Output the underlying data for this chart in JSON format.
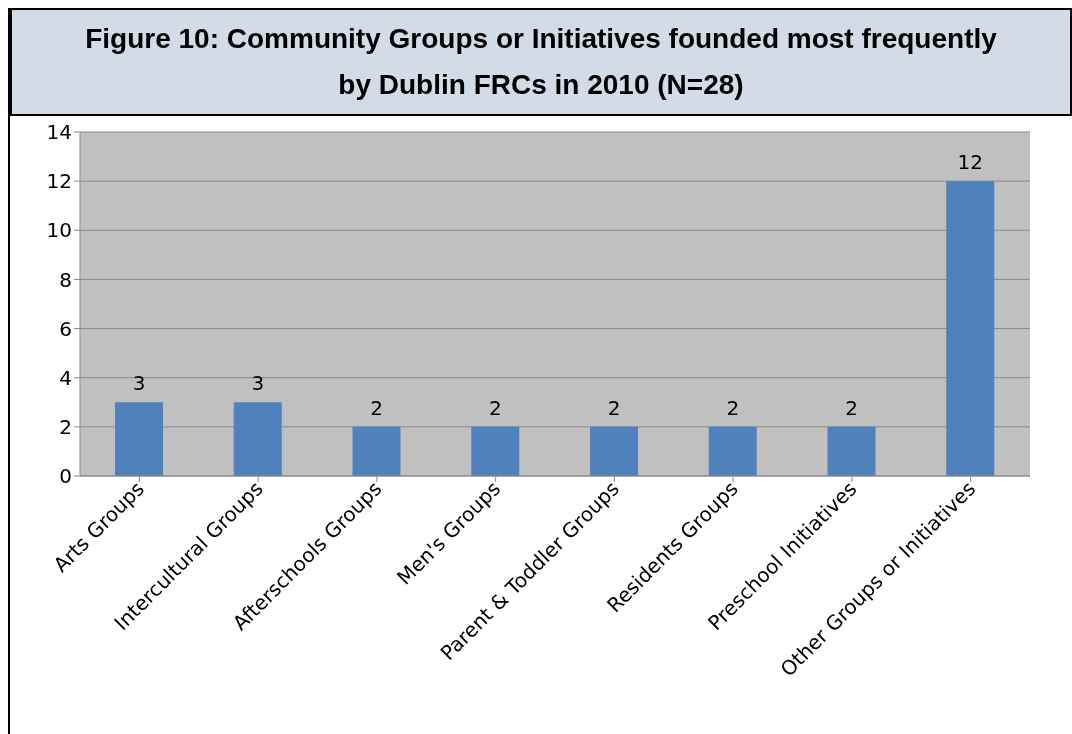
{
  "chart_data": {
    "type": "bar",
    "title": "Figure 10: Community Groups or Initiatives founded most frequently by Dublin FRCs in 2010 (N=28)",
    "categories": [
      "Arts Groups",
      "Intercultural Groups",
      "Afterschools Groups",
      "Men's Groups",
      "Parent & Toddler Groups",
      "Residents Groups",
      "Preschool Initiatives",
      "Other Groups or Initiatives"
    ],
    "values": [
      3,
      3,
      2,
      2,
      2,
      2,
      2,
      12
    ],
    "color": "#4f81bd",
    "ylim": [
      0,
      14
    ],
    "yticks": [
      0,
      2,
      4,
      6,
      8,
      10,
      12,
      14
    ],
    "grid": "y",
    "data_labels": true
  }
}
